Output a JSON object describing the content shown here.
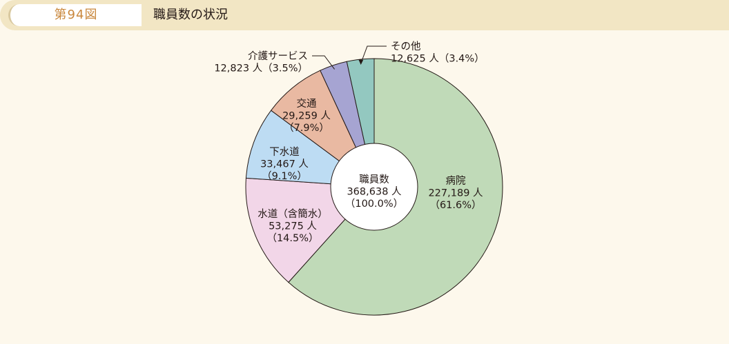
{
  "header": {
    "figure_number": "第94図",
    "title": "職員数の状況"
  },
  "chart_data": {
    "type": "pie",
    "title": "職員数の状況",
    "center": {
      "lines": [
        "職員数",
        "368,638 人",
        "（100.0%）"
      ],
      "value": 368638,
      "percent": 100.0
    },
    "slices": [
      {
        "name": "病院",
        "value": 227189,
        "percent": 61.6,
        "color": "#c0dab8",
        "lines": [
          "病院",
          "227,189 人",
          "（61.6%）"
        ]
      },
      {
        "name": "水道（含簡水）",
        "value": 53275,
        "percent": 14.5,
        "color": "#f2d6e8",
        "lines": [
          "水道（含簡水）",
          "53,275 人",
          "（14.5%）"
        ]
      },
      {
        "name": "下水道",
        "value": 33467,
        "percent": 9.1,
        "color": "#bddcf3",
        "lines": [
          "下水道",
          "33,467 人",
          "（9.1%）"
        ]
      },
      {
        "name": "交通",
        "value": 29259,
        "percent": 7.9,
        "color": "#e9b9a2",
        "lines": [
          "交通",
          "29,259 人",
          "（7.9%）"
        ]
      },
      {
        "name": "介護サービス",
        "value": 12823,
        "percent": 3.5,
        "color": "#a6a4d2",
        "lines": [
          "介護サービス",
          "12,823 人（3.5%）"
        ]
      },
      {
        "name": "その他",
        "value": 12625,
        "percent": 3.4,
        "color": "#93c8c0",
        "lines": [
          "その他",
          "12,625 人（3.4%）"
        ]
      }
    ],
    "direction": "clockwise-from-top",
    "legend": "none"
  }
}
